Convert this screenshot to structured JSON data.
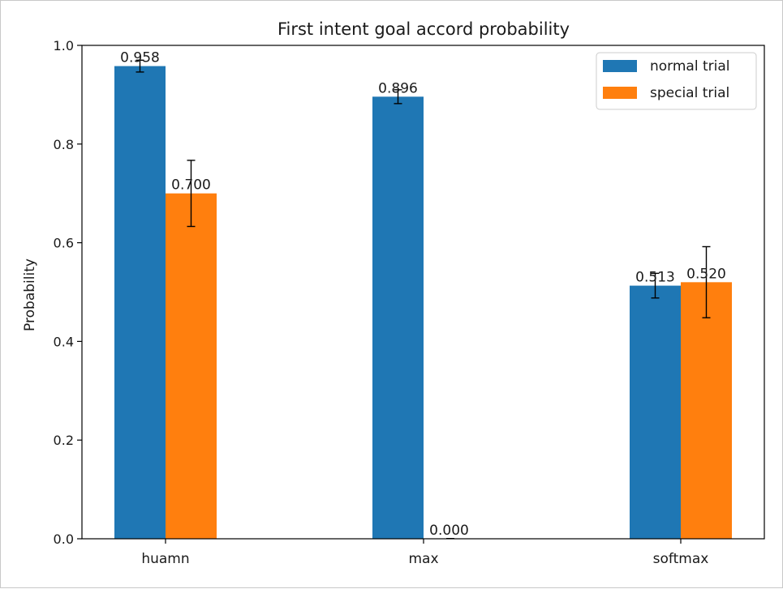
{
  "chart_data": {
    "type": "bar",
    "title": "First intent goal accord probability",
    "xlabel": "",
    "ylabel": "Probability",
    "ylim": [
      0,
      1.0
    ],
    "yticks": [
      "0.0",
      "0.2",
      "0.4",
      "0.6",
      "0.8",
      "1.0"
    ],
    "categories": [
      "huamn",
      "max",
      "softmax"
    ],
    "series": [
      {
        "name": "normal trial",
        "color": "#1f77b4",
        "values": [
          0.958,
          0.896,
          0.513
        ],
        "labels": [
          "0.958",
          "0.896",
          "0.513"
        ],
        "error": [
          0.012,
          0.014,
          0.025
        ]
      },
      {
        "name": "special trial",
        "color": "#ff7f0e",
        "values": [
          0.7,
          0.0,
          0.52
        ],
        "labels": [
          "0.700",
          "0.000",
          "0.520"
        ],
        "error": [
          0.067,
          0.0,
          0.072
        ]
      }
    ],
    "legend": "top-right",
    "grid": false
  }
}
